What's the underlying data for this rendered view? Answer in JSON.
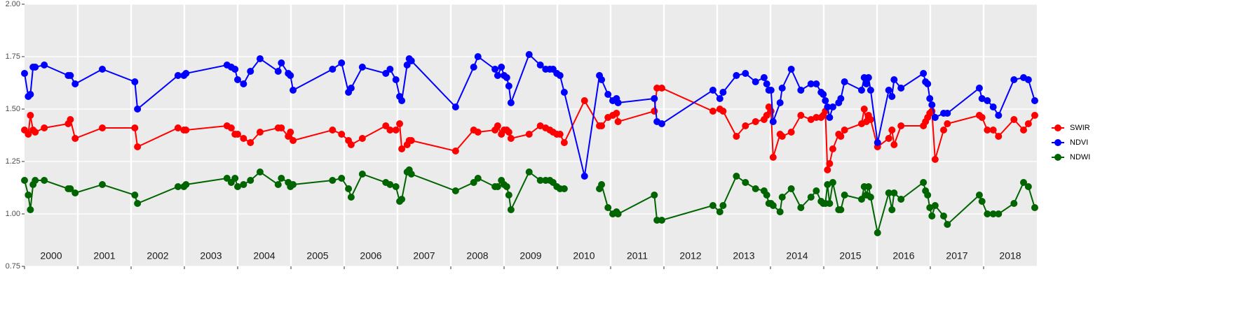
{
  "chart_data": {
    "type": "line",
    "x": [
      2000.0,
      2000.07,
      2000.11,
      2000.16,
      2000.2,
      2000.37,
      2000.82,
      2000.86,
      2000.95,
      2001.46,
      2002.07,
      2002.12,
      2002.88,
      2002.99,
      2003.03,
      2003.8,
      2003.88,
      2003.95,
      2004.0,
      2004.11,
      2004.24,
      2004.42,
      2004.76,
      2004.82,
      2004.95,
      2004.99,
      2005.04,
      2005.78,
      2005.95,
      2006.08,
      2006.13,
      2006.34,
      2006.78,
      2006.86,
      2006.97,
      2007.04,
      2007.08,
      2007.18,
      2007.22,
      2007.26,
      2008.09,
      2008.43,
      2008.51,
      2008.83,
      2008.88,
      2008.95,
      2009.0,
      2009.05,
      2009.09,
      2009.13,
      2009.47,
      2009.68,
      2009.78,
      2009.86,
      2009.92,
      2009.99,
      2010.05,
      2010.13,
      2010.51,
      2010.79,
      2010.83,
      2010.95,
      2011.04,
      2011.11,
      2011.14,
      2011.82,
      2011.87,
      2011.96,
      2012.92,
      2013.05,
      2013.11,
      2013.36,
      2013.53,
      2013.72,
      2013.88,
      2013.93,
      2013.97,
      2014.01,
      2014.05,
      2014.18,
      2014.22,
      2014.39,
      2014.57,
      2014.76,
      2014.86,
      2014.95,
      2014.99,
      2015.03,
      2015.07,
      2015.11,
      2015.17,
      2015.28,
      2015.32,
      2015.39,
      2015.71,
      2015.76,
      2015.8,
      2015.84,
      2015.88,
      2016.01,
      2016.22,
      2016.28,
      2016.32,
      2016.45,
      2016.87,
      2016.91,
      2016.95,
      2016.99,
      2017.03,
      2017.09,
      2017.25,
      2017.32,
      2017.92,
      2017.97,
      2018.07,
      2018.18,
      2018.28,
      2018.57,
      2018.75,
      2018.84,
      2018.96
    ],
    "series": [
      {
        "name": "SWIR",
        "color": "#ff0000",
        "values": [
          1.4,
          1.38,
          1.47,
          1.4,
          1.39,
          1.41,
          1.43,
          1.45,
          1.36,
          1.41,
          1.41,
          1.32,
          1.41,
          1.4,
          1.4,
          1.42,
          1.41,
          1.38,
          1.38,
          1.36,
          1.34,
          1.39,
          1.41,
          1.41,
          1.37,
          1.39,
          1.35,
          1.4,
          1.38,
          1.35,
          1.33,
          1.36,
          1.42,
          1.4,
          1.4,
          1.43,
          1.31,
          1.33,
          1.35,
          1.35,
          1.3,
          1.4,
          1.39,
          1.4,
          1.42,
          1.38,
          1.4,
          1.4,
          1.39,
          1.36,
          1.38,
          1.42,
          1.41,
          1.4,
          1.39,
          1.38,
          1.38,
          1.34,
          1.54,
          1.42,
          1.42,
          1.46,
          1.47,
          1.48,
          1.44,
          1.49,
          1.6,
          1.6,
          1.49,
          1.5,
          1.49,
          1.37,
          1.42,
          1.44,
          1.45,
          1.47,
          1.51,
          1.49,
          1.27,
          1.38,
          1.37,
          1.39,
          1.47,
          1.45,
          1.46,
          1.46,
          1.47,
          1.49,
          1.21,
          1.24,
          1.31,
          1.38,
          1.37,
          1.4,
          1.43,
          1.5,
          1.44,
          1.47,
          1.45,
          1.32,
          1.36,
          1.4,
          1.33,
          1.42,
          1.42,
          1.44,
          1.46,
          1.48,
          1.49,
          1.26,
          1.4,
          1.43,
          1.47,
          1.46,
          1.4,
          1.4,
          1.37,
          1.45,
          1.4,
          1.43,
          1.47
        ]
      },
      {
        "name": "NDVI",
        "color": "#0000ff",
        "values": [
          1.67,
          1.56,
          1.57,
          1.7,
          1.7,
          1.71,
          1.66,
          1.66,
          1.62,
          1.69,
          1.63,
          1.5,
          1.66,
          1.66,
          1.67,
          1.71,
          1.7,
          1.69,
          1.64,
          1.62,
          1.68,
          1.74,
          1.68,
          1.72,
          1.67,
          1.66,
          1.59,
          1.69,
          1.72,
          1.58,
          1.6,
          1.7,
          1.67,
          1.69,
          1.64,
          1.56,
          1.54,
          1.71,
          1.74,
          1.73,
          1.51,
          1.7,
          1.75,
          1.69,
          1.66,
          1.7,
          1.66,
          1.65,
          1.61,
          1.53,
          1.76,
          1.71,
          1.69,
          1.69,
          1.69,
          1.67,
          1.66,
          1.58,
          1.18,
          1.66,
          1.64,
          1.57,
          1.54,
          1.55,
          1.53,
          1.55,
          1.44,
          1.43,
          1.59,
          1.55,
          1.58,
          1.66,
          1.67,
          1.63,
          1.65,
          1.62,
          1.59,
          1.59,
          1.44,
          1.53,
          1.6,
          1.69,
          1.59,
          1.62,
          1.62,
          1.58,
          1.57,
          1.54,
          1.51,
          1.46,
          1.51,
          1.53,
          1.55,
          1.63,
          1.59,
          1.65,
          1.62,
          1.65,
          1.59,
          1.34,
          1.59,
          1.56,
          1.64,
          1.6,
          1.67,
          1.63,
          1.62,
          1.55,
          1.52,
          1.46,
          1.48,
          1.48,
          1.6,
          1.55,
          1.54,
          1.51,
          1.47,
          1.64,
          1.65,
          1.64,
          1.54
        ]
      },
      {
        "name": "NDWI",
        "color": "#006400",
        "values": [
          1.16,
          1.09,
          1.02,
          1.14,
          1.16,
          1.16,
          1.12,
          1.12,
          1.1,
          1.14,
          1.09,
          1.05,
          1.13,
          1.13,
          1.14,
          1.17,
          1.15,
          1.17,
          1.13,
          1.14,
          1.16,
          1.2,
          1.14,
          1.17,
          1.15,
          1.13,
          1.14,
          1.16,
          1.17,
          1.12,
          1.08,
          1.19,
          1.15,
          1.14,
          1.13,
          1.06,
          1.07,
          1.2,
          1.21,
          1.19,
          1.11,
          1.15,
          1.17,
          1.13,
          1.13,
          1.16,
          1.14,
          1.13,
          1.09,
          1.02,
          1.2,
          1.16,
          1.16,
          1.16,
          1.15,
          1.13,
          1.12,
          1.12,
          null,
          1.12,
          1.14,
          1.03,
          1.0,
          1.01,
          1.0,
          1.09,
          0.97,
          0.97,
          1.04,
          1.01,
          1.04,
          1.18,
          1.15,
          1.12,
          1.11,
          1.09,
          1.05,
          1.05,
          1.04,
          1.01,
          1.08,
          1.12,
          1.03,
          1.08,
          1.11,
          1.06,
          1.05,
          1.05,
          1.14,
          1.05,
          1.15,
          1.02,
          1.02,
          1.09,
          1.07,
          1.13,
          1.09,
          1.13,
          1.08,
          0.91,
          1.1,
          1.02,
          1.1,
          1.07,
          1.15,
          1.11,
          1.09,
          1.03,
          0.99,
          1.04,
          0.99,
          0.95,
          1.09,
          1.06,
          1.0,
          1.0,
          1.0,
          1.05,
          1.15,
          1.13,
          1.03
        ]
      }
    ],
    "xlim": [
      2000,
      2019
    ],
    "xticks": [
      2000,
      2001,
      2002,
      2003,
      2004,
      2005,
      2006,
      2007,
      2008,
      2009,
      2010,
      2011,
      2012,
      2013,
      2014,
      2015,
      2016,
      2017,
      2018
    ],
    "ylim": [
      0.75,
      2.0
    ],
    "yticks": [
      {
        "value": 0.75,
        "label": "0.75"
      },
      {
        "value": 1.0,
        "label": "1.00"
      },
      {
        "value": 1.25,
        "label": "1.25"
      },
      {
        "value": 1.5,
        "label": "1.50"
      },
      {
        "value": 1.75,
        "label": "1.75"
      },
      {
        "value": 2.0,
        "label": "2.00"
      }
    ],
    "grid": true,
    "legend": "right"
  }
}
